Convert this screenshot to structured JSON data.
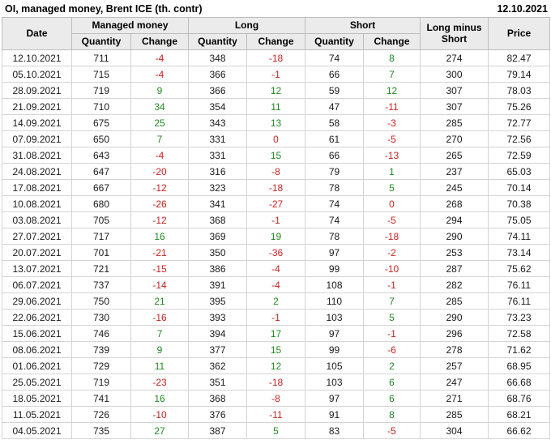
{
  "title": "OI, managed money, Brent ICE (th. contr)",
  "report_date": "12.10.2021",
  "header": {
    "date": "Date",
    "managed_money": "Managed money",
    "long": "Long",
    "short": "Short",
    "quantity": "Quantity",
    "change": "Change",
    "long_minus_short": "Long minus Short",
    "price": "Price"
  },
  "colors": {
    "positive_change": "#228B22",
    "negative_or_zero_change": "#CC2222",
    "header_bg": "#EBEBEB",
    "header_border": "#BDBDBD",
    "cell_border": "#D4D4D4",
    "text": "#1A1A1A"
  },
  "chart_data": {
    "type": "table",
    "title": "OI, managed money, Brent ICE (th. contr)",
    "as_of_date": "12.10.2021",
    "columns": [
      "Date",
      "Managed money Quantity",
      "Managed money Change",
      "Long Quantity",
      "Long Change",
      "Short Quantity",
      "Short Change",
      "Long minus Short",
      "Price"
    ],
    "change_column_indexes": [
      2,
      4,
      6
    ],
    "rows": [
      [
        "12.10.2021",
        711,
        -4,
        348,
        -18,
        74,
        8,
        274,
        "82.47"
      ],
      [
        "05.10.2021",
        715,
        -4,
        366,
        -1,
        66,
        7,
        300,
        "79.14"
      ],
      [
        "28.09.2021",
        719,
        9,
        366,
        12,
        59,
        12,
        307,
        "78.03"
      ],
      [
        "21.09.2021",
        710,
        34,
        354,
        11,
        47,
        -11,
        307,
        "75.26"
      ],
      [
        "14.09.2021",
        675,
        25,
        343,
        13,
        58,
        -3,
        285,
        "72.77"
      ],
      [
        "07.09.2021",
        650,
        7,
        331,
        0,
        61,
        -5,
        270,
        "72.56"
      ],
      [
        "31.08.2021",
        643,
        -4,
        331,
        15,
        66,
        -13,
        265,
        "72.59"
      ],
      [
        "24.08.2021",
        647,
        -20,
        316,
        -8,
        79,
        1,
        237,
        "65.03"
      ],
      [
        "17.08.2021",
        667,
        -12,
        323,
        -18,
        78,
        5,
        245,
        "70.14"
      ],
      [
        "10.08.2021",
        680,
        -26,
        341,
        -27,
        74,
        0,
        268,
        "70.38"
      ],
      [
        "03.08.2021",
        705,
        -12,
        368,
        -1,
        74,
        -5,
        294,
        "75.05"
      ],
      [
        "27.07.2021",
        717,
        16,
        369,
        19,
        78,
        -18,
        290,
        "74.11"
      ],
      [
        "20.07.2021",
        701,
        -21,
        350,
        -36,
        97,
        -2,
        253,
        "73.14"
      ],
      [
        "13.07.2021",
        721,
        -15,
        386,
        -4,
        99,
        -10,
        287,
        "75.62"
      ],
      [
        "06.07.2021",
        737,
        -14,
        391,
        -4,
        108,
        -1,
        282,
        "76.11"
      ],
      [
        "29.06.2021",
        750,
        21,
        395,
        2,
        110,
        7,
        285,
        "76.11"
      ],
      [
        "22.06.2021",
        730,
        -16,
        393,
        -1,
        103,
        5,
        290,
        "73.23"
      ],
      [
        "15.06.2021",
        746,
        7,
        394,
        17,
        97,
        -1,
        296,
        "72.58"
      ],
      [
        "08.06.2021",
        739,
        9,
        377,
        15,
        99,
        -6,
        278,
        "71.62"
      ],
      [
        "01.06.2021",
        729,
        11,
        362,
        12,
        105,
        2,
        257,
        "68.95"
      ],
      [
        "25.05.2021",
        719,
        -23,
        351,
        -18,
        103,
        6,
        247,
        "66.68"
      ],
      [
        "18.05.2021",
        741,
        16,
        368,
        -8,
        97,
        6,
        271,
        "68.76"
      ],
      [
        "11.05.2021",
        726,
        -10,
        376,
        -11,
        91,
        8,
        285,
        "68.21"
      ],
      [
        "04.05.2021",
        735,
        27,
        387,
        5,
        83,
        -5,
        304,
        "66.62"
      ]
    ]
  }
}
